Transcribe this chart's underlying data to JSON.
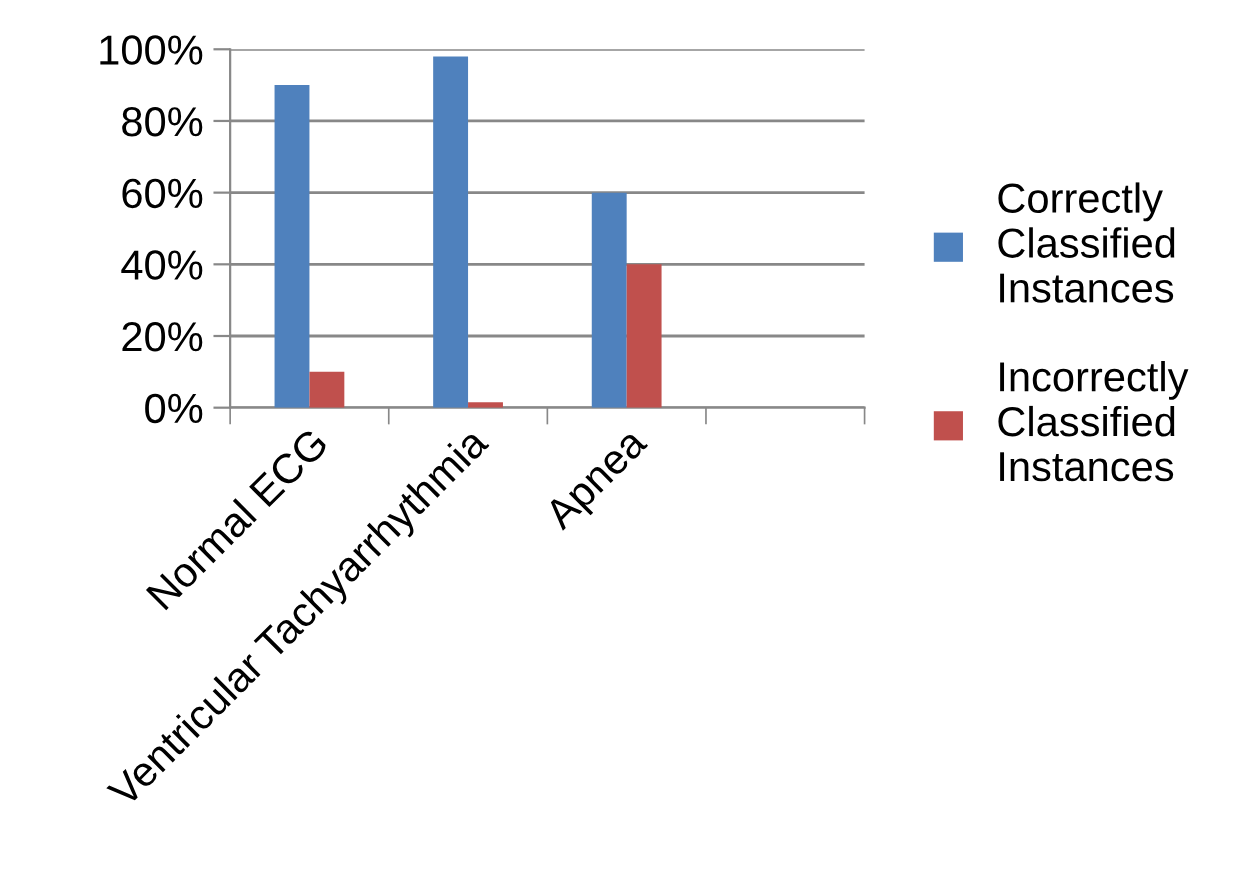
{
  "chart_data": {
    "type": "bar",
    "categories": [
      "Normal ECG",
      "Ventricular Tachyarrhythmia",
      "Apnea",
      null
    ],
    "series": [
      {
        "name": "Correctly Classified Instances",
        "color": "#4f81bd",
        "values": [
          90,
          98,
          60,
          null
        ]
      },
      {
        "name": "Incorrectly Classified Instances",
        "color": "#c0504d",
        "values": [
          10,
          1.5,
          40,
          null
        ]
      }
    ],
    "ylim": [
      0,
      100
    ],
    "yticks": [
      {
        "value": 0,
        "label": "0%"
      },
      {
        "value": 20,
        "label": "20%"
      },
      {
        "value": 40,
        "label": "40%"
      },
      {
        "value": 60,
        "label": "60%"
      },
      {
        "value": 80,
        "label": "80%"
      },
      {
        "value": 100,
        "label": "100%"
      }
    ],
    "grid": "y",
    "legend": "right"
  }
}
